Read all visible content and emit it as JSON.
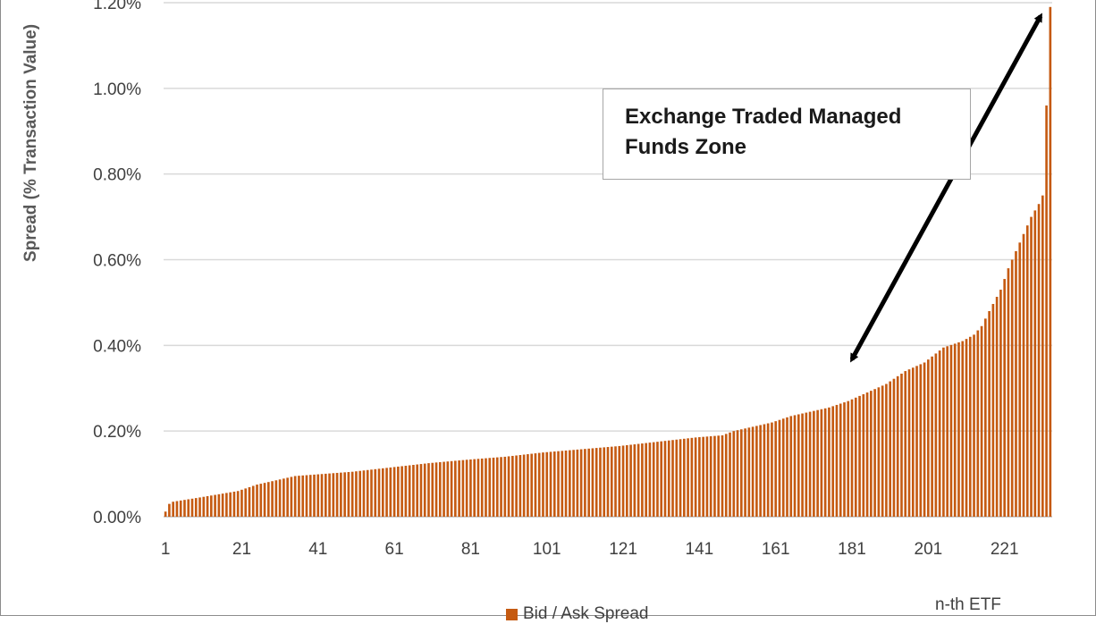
{
  "chart_data": {
    "type": "bar",
    "title": "",
    "ylabel": "Spread (% Transaction Value)",
    "xlabel": "n-th ETF",
    "ylim": [
      0,
      1.2
    ],
    "y_ticks": [
      "0.00%",
      "0.20%",
      "0.40%",
      "0.60%",
      "0.80%",
      "1.00%",
      "1.20%"
    ],
    "x_ticks": [
      "1",
      "21",
      "41",
      "61",
      "81",
      "101",
      "121",
      "141",
      "161",
      "181",
      "201",
      "221"
    ],
    "grid": "horizontal",
    "legend_placement": "bottom",
    "bar_color": "#c55a11",
    "anchor_points": [
      [
        1,
        0.012
      ],
      [
        2,
        0.03
      ],
      [
        3,
        0.035
      ],
      [
        10,
        0.045
      ],
      [
        20,
        0.06
      ],
      [
        25,
        0.075
      ],
      [
        35,
        0.095
      ],
      [
        50,
        0.105
      ],
      [
        60,
        0.115
      ],
      [
        70,
        0.125
      ],
      [
        80,
        0.133
      ],
      [
        90,
        0.14
      ],
      [
        100,
        0.15
      ],
      [
        120,
        0.165
      ],
      [
        140,
        0.185
      ],
      [
        147,
        0.19
      ],
      [
        150,
        0.2
      ],
      [
        155,
        0.21
      ],
      [
        160,
        0.22
      ],
      [
        165,
        0.235
      ],
      [
        175,
        0.255
      ],
      [
        180,
        0.27
      ],
      [
        185,
        0.29
      ],
      [
        190,
        0.31
      ],
      [
        195,
        0.34
      ],
      [
        200,
        0.36
      ],
      [
        205,
        0.395
      ],
      [
        210,
        0.41
      ],
      [
        213,
        0.425
      ],
      [
        215,
        0.445
      ],
      [
        217,
        0.48
      ],
      [
        220,
        0.53
      ],
      [
        222,
        0.58
      ],
      [
        224,
        0.62
      ],
      [
        226,
        0.66
      ],
      [
        228,
        0.7
      ],
      [
        230,
        0.73
      ],
      [
        231,
        0.75
      ],
      [
        232,
        0.96
      ],
      [
        233,
        1.19
      ]
    ],
    "series": [
      {
        "name": "Bid / Ask Spread"
      }
    ],
    "annotation": {
      "text": "Exchange Traded Managed Funds Zone",
      "arrow": "double-headed, spanning roughly ETF 180 (0.36%) to ETF 231 (1.19%)"
    }
  }
}
